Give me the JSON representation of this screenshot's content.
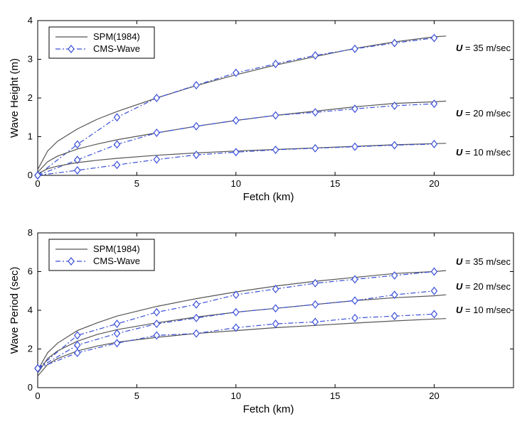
{
  "chart_data": [
    {
      "type": "line",
      "xlabel": "Fetch (km)",
      "ylabel": "Wave Height (m)",
      "xlim": [
        0,
        24
      ],
      "ylim": [
        0,
        4
      ],
      "xticks": [
        0,
        5,
        10,
        15,
        20
      ],
      "yticks": [
        0,
        1,
        2,
        3,
        4
      ],
      "grid": false,
      "legend": "top-left",
      "legend_entries": [
        "SPM(1984)",
        "CMS-Wave"
      ],
      "annotations": [
        {
          "prefix": "U",
          "text": " = 35 m/sec"
        },
        {
          "prefix": "U",
          "text": " = 20 m/sec"
        },
        {
          "prefix": "U",
          "text": " = 10 m/sec"
        }
      ],
      "series": [
        {
          "name": "SPM(1984)",
          "group": "U = 35 m/sec",
          "style": "solid",
          "color": "#555555",
          "x": [
            0,
            0.5,
            1,
            2,
            3,
            4,
            6,
            8,
            10,
            12,
            14,
            16,
            18,
            20,
            20.6
          ],
          "y": [
            0.15,
            0.63,
            0.88,
            1.2,
            1.45,
            1.65,
            2.0,
            2.32,
            2.6,
            2.85,
            3.07,
            3.28,
            3.45,
            3.58,
            3.6
          ]
        },
        {
          "name": "CMS-Wave",
          "group": "U = 35 m/sec",
          "style": "dashdot",
          "color": "#3a4fd8",
          "x": [
            0,
            2,
            4,
            6,
            8,
            10,
            12,
            14,
            16,
            18,
            20
          ],
          "y": [
            0,
            0.8,
            1.5,
            2.0,
            2.33,
            2.65,
            2.88,
            3.1,
            3.27,
            3.42,
            3.55
          ]
        },
        {
          "name": "SPM(1984)",
          "group": "U = 20 m/sec",
          "style": "solid",
          "color": "#555555",
          "x": [
            0,
            0.5,
            1,
            2,
            3,
            4,
            6,
            8,
            10,
            12,
            14,
            16,
            18,
            20,
            20.6
          ],
          "y": [
            0.08,
            0.35,
            0.5,
            0.68,
            0.81,
            0.92,
            1.1,
            1.27,
            1.42,
            1.55,
            1.66,
            1.77,
            1.86,
            1.9,
            1.92
          ]
        },
        {
          "name": "CMS-Wave",
          "group": "U = 20 m/sec",
          "style": "dashdot",
          "color": "#3a4fd8",
          "x": [
            0,
            2,
            4,
            6,
            8,
            10,
            12,
            14,
            16,
            18,
            20
          ],
          "y": [
            0,
            0.4,
            0.8,
            1.1,
            1.27,
            1.42,
            1.55,
            1.63,
            1.72,
            1.8,
            1.85
          ]
        },
        {
          "name": "SPM(1984)",
          "group": "U = 10 m/sec",
          "style": "solid",
          "color": "#555555",
          "x": [
            0,
            0.5,
            1,
            2,
            3,
            4,
            6,
            8,
            10,
            12,
            14,
            16,
            18,
            20,
            20.6
          ],
          "y": [
            0.04,
            0.17,
            0.24,
            0.33,
            0.39,
            0.44,
            0.52,
            0.58,
            0.63,
            0.67,
            0.71,
            0.75,
            0.79,
            0.82,
            0.83
          ]
        },
        {
          "name": "CMS-Wave",
          "group": "U = 10 m/sec",
          "style": "dashdot",
          "color": "#3a4fd8",
          "x": [
            0,
            2,
            4,
            6,
            8,
            10,
            12,
            14,
            16,
            18,
            20
          ],
          "y": [
            0,
            0.13,
            0.27,
            0.41,
            0.53,
            0.6,
            0.66,
            0.7,
            0.74,
            0.78,
            0.81
          ]
        }
      ]
    },
    {
      "type": "line",
      "xlabel": "Fetch (km)",
      "ylabel": "Wave Period (sec)",
      "xlim": [
        0,
        24
      ],
      "ylim": [
        0,
        8
      ],
      "xticks": [
        0,
        5,
        10,
        15,
        20
      ],
      "yticks": [
        0,
        2,
        4,
        6,
        8
      ],
      "grid": false,
      "legend": "top-left",
      "legend_entries": [
        "SPM(1984)",
        "CMS-Wave"
      ],
      "annotations": [
        {
          "prefix": "U",
          "text": " = 35 m/sec"
        },
        {
          "prefix": "U",
          "text": " = 20 m/sec"
        },
        {
          "prefix": "U",
          "text": " = 10 m/sec"
        }
      ],
      "series": [
        {
          "name": "SPM(1984)",
          "group": "U = 35 m/sec",
          "style": "solid",
          "color": "#555555",
          "x": [
            0,
            0.5,
            1,
            2,
            3,
            4,
            6,
            8,
            10,
            12,
            14,
            16,
            18,
            20,
            20.6
          ],
          "y": [
            0.9,
            1.8,
            2.3,
            2.95,
            3.35,
            3.7,
            4.2,
            4.6,
            4.95,
            5.25,
            5.5,
            5.7,
            5.9,
            6.0,
            6.05
          ]
        },
        {
          "name": "CMS-Wave",
          "group": "U = 35 m/sec",
          "style": "dashdot",
          "color": "#3a4fd8",
          "x": [
            0,
            2,
            4,
            6,
            8,
            10,
            12,
            14,
            16,
            18,
            20
          ],
          "y": [
            1.0,
            2.7,
            3.3,
            3.9,
            4.3,
            4.8,
            5.1,
            5.4,
            5.6,
            5.8,
            6.0
          ]
        },
        {
          "name": "SPM(1984)",
          "group": "U = 20 m/sec",
          "style": "solid",
          "color": "#555555",
          "x": [
            0,
            0.5,
            1,
            2,
            3,
            4,
            6,
            8,
            10,
            12,
            14,
            16,
            18,
            20,
            20.6
          ],
          "y": [
            0.75,
            1.5,
            1.9,
            2.4,
            2.75,
            3.0,
            3.35,
            3.65,
            3.9,
            4.1,
            4.3,
            4.5,
            4.65,
            4.75,
            4.8
          ]
        },
        {
          "name": "CMS-Wave",
          "group": "U = 20 m/sec",
          "style": "dashdot",
          "color": "#3a4fd8",
          "x": [
            0,
            2,
            4,
            6,
            8,
            10,
            12,
            14,
            16,
            18,
            20
          ],
          "y": [
            1.0,
            2.2,
            2.8,
            3.3,
            3.6,
            3.9,
            4.1,
            4.3,
            4.5,
            4.8,
            5.0
          ]
        },
        {
          "name": "SPM(1984)",
          "group": "U = 10 m/sec",
          "style": "solid",
          "color": "#555555",
          "x": [
            0,
            0.5,
            1,
            2,
            3,
            4,
            6,
            8,
            10,
            12,
            14,
            16,
            18,
            20,
            20.6
          ],
          "y": [
            0.6,
            1.2,
            1.5,
            1.9,
            2.15,
            2.35,
            2.6,
            2.8,
            2.95,
            3.1,
            3.22,
            3.34,
            3.45,
            3.55,
            3.57
          ]
        },
        {
          "name": "CMS-Wave",
          "group": "U = 10 m/sec",
          "style": "dashdot",
          "color": "#3a4fd8",
          "x": [
            0,
            2,
            4,
            6,
            8,
            10,
            12,
            14,
            16,
            18,
            20
          ],
          "y": [
            1.0,
            1.8,
            2.3,
            2.7,
            2.8,
            3.1,
            3.3,
            3.4,
            3.6,
            3.7,
            3.8
          ]
        }
      ]
    }
  ]
}
